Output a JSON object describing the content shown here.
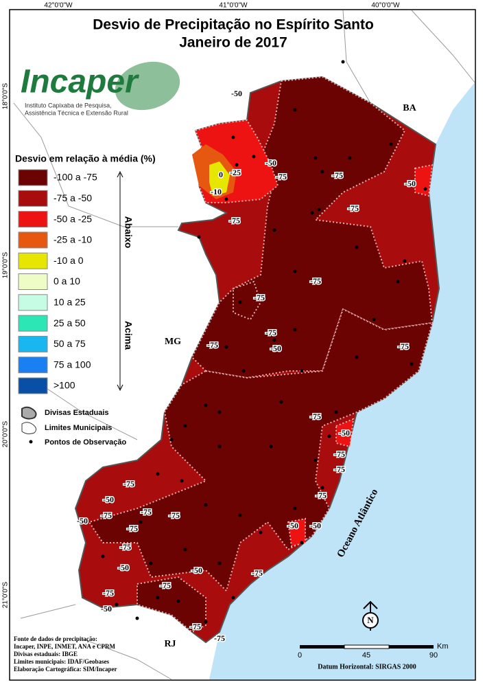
{
  "header": {
    "title": "Desvio de Precipitação no Espírito Santo",
    "subtitle": "Janeiro de 2017"
  },
  "coordinates": {
    "longitudes": [
      "42°0'0\"W",
      "41°0'0\"W",
      "40°0'0\"W"
    ],
    "latitudes": [
      "18°0'0\"S",
      "19°0'0\"S",
      "20°0'0\"S",
      "21°0'0\"S"
    ]
  },
  "logo": {
    "name": "Incaper",
    "line1": "Instituto Capixaba de Pesquisa,",
    "line2": "Assistência Técnica e Extensão Rural"
  },
  "legend": {
    "title": "Desvio em relação à média (%)",
    "below": "Abaixo",
    "above": "Acima",
    "items": [
      {
        "label": "-100 a -75",
        "color": "#6b0303"
      },
      {
        "label": "-75 a -50",
        "color": "#a80c0c"
      },
      {
        "label": "-50 a -25",
        "color": "#ee1313"
      },
      {
        "label": "-25 a -10",
        "color": "#e6570f"
      },
      {
        "label": "-10 a 0",
        "color": "#e6e600"
      },
      {
        "label": "0 a 10",
        "color": "#eefcc6"
      },
      {
        "label": "10 a 25",
        "color": "#c6fbe4"
      },
      {
        "label": "25 a 50",
        "color": "#2de6b6"
      },
      {
        "label": "50 a 75",
        "color": "#18b7f0"
      },
      {
        "label": "75 a 100",
        "color": "#1a7ff0"
      },
      {
        "label": ">100",
        "color": "#0a4fa6"
      }
    ],
    "symbols": [
      "Divisas Estaduais",
      "Limites Municipais",
      "Pontos de Observação"
    ]
  },
  "map": {
    "states": [
      "BA",
      "MG",
      "RJ"
    ],
    "ocean": "Oceano Atlântico",
    "contour_labels": [
      "-50",
      "-50",
      "-25",
      "0",
      "-10",
      "-75",
      "-75",
      "-50",
      "-75",
      "-75",
      "-75",
      "-75",
      "-75",
      "-50",
      "-75",
      "-75",
      "-75",
      "-50",
      "-75",
      "-75",
      "-75",
      "-75",
      "-50",
      "-75",
      "-75",
      "-75",
      "-50",
      "-75",
      "-50",
      "-50",
      "-75",
      "-50",
      "-50",
      "-75",
      "-75",
      "-75",
      "-50",
      "-75",
      "-75"
    ]
  },
  "sources": [
    "Fonte de dados de precipitação:",
    "Incaper, INPE, INMET, ANA e CPRM",
    "Divisas estaduais: IBGE",
    "Limites municipais: IDAF/Geobases",
    "Elaboração Cartográfica: SIM/Incaper"
  ],
  "scale": {
    "ticks": [
      "0",
      "45",
      "90"
    ],
    "unit": "Km",
    "datum": "Datum Horizontal: SIRGAS 2000"
  },
  "north": "N"
}
